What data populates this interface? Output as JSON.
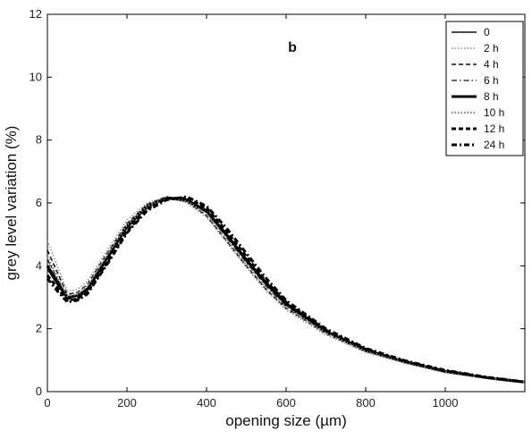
{
  "chart_data": {
    "type": "line",
    "title": "",
    "panel_label": "b",
    "xlabel": "opening size (µm)",
    "ylabel": "grey level variation (%)",
    "xlim": [
      0,
      1200
    ],
    "ylim": [
      0,
      12
    ],
    "x_ticks": [
      0,
      200,
      400,
      600,
      800,
      1000
    ],
    "y_ticks": [
      0,
      2,
      4,
      6,
      8,
      10,
      12
    ],
    "legend_position": "top-right",
    "grid": false,
    "series": [
      {
        "name": "0",
        "style": "solid",
        "x": [
          0,
          25,
          50,
          75,
          100,
          150,
          200,
          250,
          300,
          350,
          400,
          450,
          500,
          550,
          600,
          700,
          800,
          900,
          1000,
          1100,
          1150,
          1200
        ],
        "y": [
          3.9,
          3.4,
          2.95,
          2.95,
          3.2,
          4.2,
          5.2,
          5.85,
          6.15,
          6.05,
          5.7,
          4.95,
          4.15,
          3.4,
          2.75,
          1.9,
          1.35,
          0.95,
          0.65,
          0.45,
          0.38,
          0.3
        ]
      },
      {
        "name": "2 h",
        "style": "dotted",
        "x": [
          0,
          25,
          50,
          75,
          100,
          150,
          200,
          250,
          300,
          350,
          400,
          450,
          500,
          550,
          600,
          700,
          800,
          900,
          1000,
          1100,
          1150,
          1200
        ],
        "y": [
          4.8,
          4.0,
          3.2,
          3.25,
          3.5,
          4.5,
          5.45,
          6.0,
          6.2,
          6.0,
          5.55,
          4.75,
          3.95,
          3.2,
          2.6,
          1.8,
          1.25,
          0.9,
          0.6,
          0.42,
          0.35,
          0.28
        ]
      },
      {
        "name": "4 h",
        "style": "dashed",
        "x": [
          0,
          25,
          50,
          75,
          100,
          150,
          200,
          250,
          300,
          350,
          400,
          450,
          500,
          550,
          600,
          700,
          800,
          900,
          1000,
          1100,
          1150,
          1200
        ],
        "y": [
          4.5,
          3.8,
          3.1,
          3.15,
          3.4,
          4.4,
          5.35,
          5.95,
          6.2,
          6.05,
          5.6,
          4.8,
          4.0,
          3.25,
          2.65,
          1.85,
          1.28,
          0.92,
          0.62,
          0.44,
          0.36,
          0.29
        ]
      },
      {
        "name": "6 h",
        "style": "dashdot",
        "x": [
          0,
          25,
          50,
          75,
          100,
          150,
          200,
          250,
          300,
          350,
          400,
          450,
          500,
          550,
          600,
          700,
          800,
          900,
          1000,
          1100,
          1150,
          1200
        ],
        "y": [
          4.2,
          3.6,
          3.0,
          3.05,
          3.3,
          4.3,
          5.3,
          5.9,
          6.2,
          6.1,
          5.7,
          4.9,
          4.1,
          3.35,
          2.7,
          1.88,
          1.3,
          0.93,
          0.63,
          0.44,
          0.36,
          0.29
        ]
      },
      {
        "name": "8 h",
        "style": "solid-thick",
        "x": [
          0,
          25,
          50,
          75,
          100,
          150,
          200,
          250,
          300,
          350,
          400,
          450,
          500,
          550,
          600,
          700,
          800,
          900,
          1000,
          1100,
          1150,
          1200
        ],
        "y": [
          4.0,
          3.5,
          3.0,
          3.05,
          3.25,
          4.25,
          5.25,
          5.9,
          6.15,
          6.1,
          5.75,
          5.0,
          4.2,
          3.45,
          2.8,
          1.92,
          1.32,
          0.94,
          0.64,
          0.45,
          0.37,
          0.3
        ]
      },
      {
        "name": "10 h",
        "style": "dotted-thick",
        "x": [
          0,
          25,
          50,
          75,
          100,
          150,
          200,
          250,
          300,
          350,
          400,
          450,
          500,
          550,
          600,
          700,
          800,
          900,
          1000,
          1100,
          1150,
          1200
        ],
        "y": [
          4.3,
          3.65,
          3.05,
          3.1,
          3.35,
          4.35,
          5.3,
          5.9,
          6.15,
          6.05,
          5.65,
          4.85,
          4.05,
          3.3,
          2.68,
          1.86,
          1.28,
          0.92,
          0.62,
          0.44,
          0.36,
          0.29
        ]
      },
      {
        "name": "12 h",
        "style": "dashed-thick",
        "x": [
          0,
          25,
          50,
          75,
          100,
          150,
          200,
          250,
          300,
          350,
          400,
          450,
          500,
          550,
          600,
          700,
          800,
          900,
          1000,
          1100,
          1150,
          1200
        ],
        "y": [
          3.7,
          3.3,
          2.9,
          2.95,
          3.15,
          4.1,
          5.1,
          5.8,
          6.15,
          6.15,
          5.85,
          5.1,
          4.3,
          3.5,
          2.85,
          1.95,
          1.35,
          0.96,
          0.66,
          0.46,
          0.38,
          0.3
        ]
      },
      {
        "name": "24 h",
        "style": "dashdot-thick",
        "x": [
          0,
          25,
          50,
          75,
          100,
          150,
          200,
          250,
          300,
          350,
          400,
          450,
          500,
          550,
          600,
          700,
          800,
          900,
          1000,
          1100,
          1150,
          1200
        ],
        "y": [
          3.6,
          3.2,
          2.85,
          2.9,
          3.1,
          4.05,
          5.05,
          5.75,
          6.1,
          6.2,
          5.9,
          5.2,
          4.4,
          3.6,
          2.9,
          2.0,
          1.38,
          0.98,
          0.68,
          0.47,
          0.39,
          0.31
        ]
      }
    ]
  }
}
